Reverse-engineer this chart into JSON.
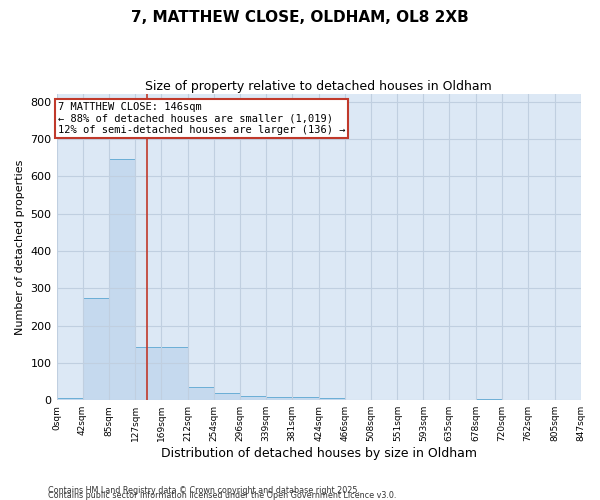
{
  "title": "7, MATTHEW CLOSE, OLDHAM, OL8 2XB",
  "subtitle": "Size of property relative to detached houses in Oldham",
  "xlabel": "Distribution of detached houses by size in Oldham",
  "ylabel": "Number of detached properties",
  "bar_values": [
    5,
    275,
    645,
    143,
    143,
    35,
    18,
    10,
    8,
    8,
    5,
    0,
    0,
    0,
    0,
    0,
    3,
    0,
    0,
    0
  ],
  "bin_edges": [
    0,
    42,
    85,
    127,
    169,
    212,
    254,
    296,
    339,
    381,
    424,
    466,
    508,
    551,
    593,
    635,
    678,
    720,
    762,
    805,
    847
  ],
  "tick_labels": [
    "0sqm",
    "42sqm",
    "85sqm",
    "127sqm",
    "169sqm",
    "212sqm",
    "254sqm",
    "296sqm",
    "339sqm",
    "381sqm",
    "424sqm",
    "466sqm",
    "508sqm",
    "551sqm",
    "593sqm",
    "635sqm",
    "678sqm",
    "720sqm",
    "762sqm",
    "805sqm",
    "847sqm"
  ],
  "bar_color": "#c5d9ee",
  "bar_edge_color": "#6aaed6",
  "vline_x": 146,
  "vline_color": "#c0392b",
  "annotation_line1": "7 MATTHEW CLOSE: 146sqm",
  "annotation_line2": "← 88% of detached houses are smaller (1,019)",
  "annotation_line3": "12% of semi-detached houses are larger (136) →",
  "annotation_box_color": "#c0392b",
  "ylim": [
    0,
    820
  ],
  "yticks": [
    0,
    100,
    200,
    300,
    400,
    500,
    600,
    700,
    800
  ],
  "grid_color": "#c0cfe0",
  "background_color": "#dce8f5",
  "footer_line1": "Contains HM Land Registry data © Crown copyright and database right 2025.",
  "footer_line2": "Contains public sector information licensed under the Open Government Licence v3.0."
}
